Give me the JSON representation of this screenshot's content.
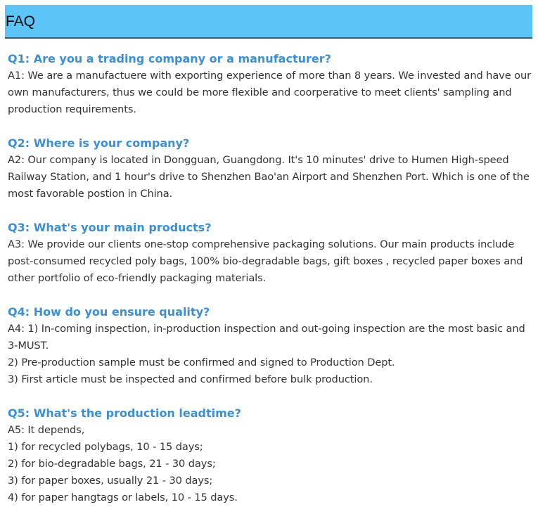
{
  "header": {
    "title": "FAQ"
  },
  "faqs": [
    {
      "question": "Q1: Are you a trading company or a manufacturer?",
      "answer": [
        "A1: We are a manufactuere with exporting experience of more than 8 years. We invested and have our own manufacturers, thus we could be more flexible and coorperative to meet clients' sampling and production requirements."
      ]
    },
    {
      "question": "Q2: Where is your company?",
      "answer": [
        "A2: Our company is located in Dongguan, Guangdong. It's 10 minutes' drive to Humen High-speed Railway Station, and 1 hour's drive to Shenzhen Bao'an Airport and Shenzhen Port. Which is one of the most favorable postion in China."
      ]
    },
    {
      "question": "Q3: What's your main products?",
      "answer": [
        "A3: We provide our clients one-stop comprehensive packaging solutions. Our main products include post-consumed recycled poly bags, 100% bio-degradable bags, gift boxes , recycled paper boxes and other portfolio of eco-friendly packaging materials."
      ]
    },
    {
      "question": "Q4: How do you ensure quality?",
      "answer": [
        "A4: 1) In-coming inspection, in-production inspection and out-going inspection are the most basic and 3-MUST.",
        "2) Pre-production sample must be confirmed and signed to Production Dept.",
        "3) First article must be inspected and confirmed before bulk production."
      ]
    },
    {
      "question": "Q5: What's the production leadtime?",
      "answer": [
        "A5: It depends,",
        "1) for recycled polybags, 10 - 15 days;",
        "2) for bio-degradable bags, 21 - 30 days;",
        "3) for paper boxes, usually 21 - 30 days;",
        "4) for paper hangtags or labels, 10 - 15 days."
      ]
    }
  ]
}
